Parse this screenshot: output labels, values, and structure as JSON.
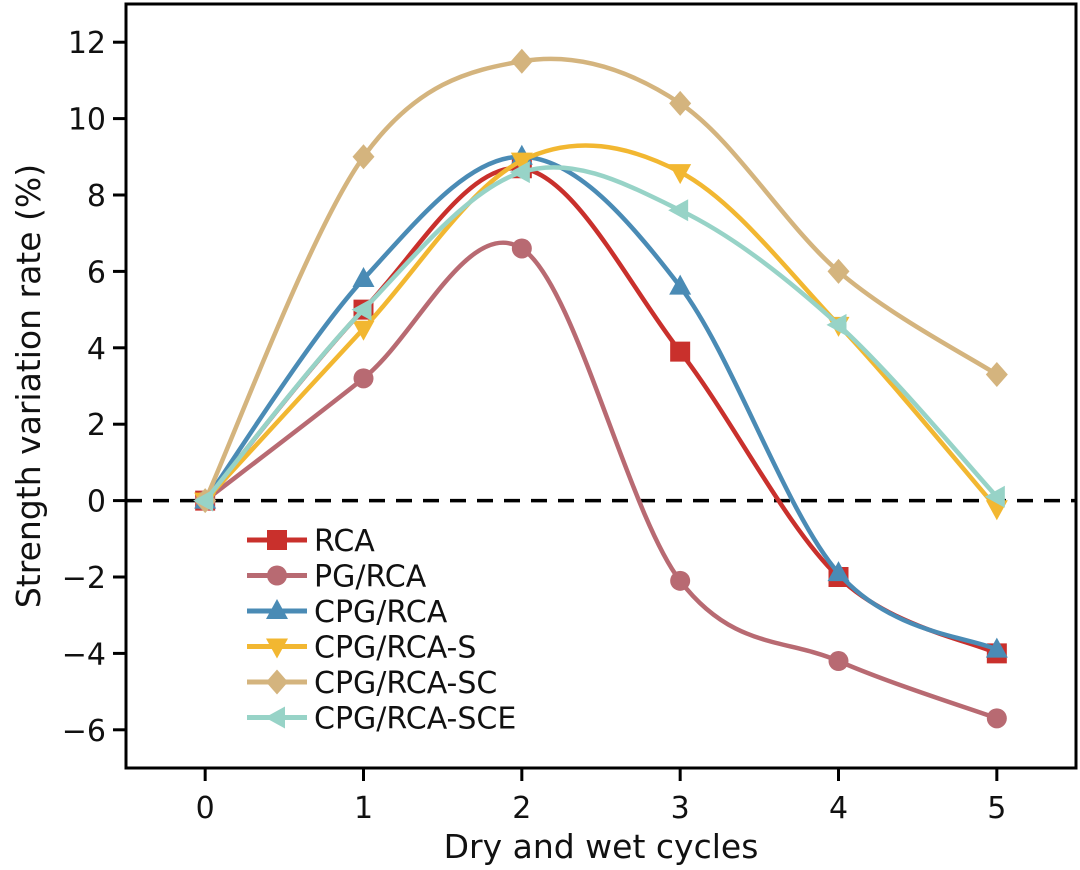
{
  "chart_data": {
    "type": "line",
    "title": "",
    "xlabel": "Dry and wet cycles",
    "ylabel": "Strength variation rate (%)",
    "x": [
      0,
      1,
      2,
      3,
      4,
      5
    ],
    "xlim": [
      -0.5,
      5.5
    ],
    "ylim": [
      -7,
      13
    ],
    "xticks": [
      0,
      1,
      2,
      3,
      4,
      5
    ],
    "yticks": [
      12,
      10,
      8,
      6,
      4,
      2,
      0,
      -2,
      -4,
      -6
    ],
    "ytick_labels": [
      "12",
      "10",
      "8",
      "6",
      "4",
      "2",
      "0",
      "−2",
      "−4",
      "−6"
    ],
    "reference_line": {
      "y": 0,
      "style": "dashed"
    },
    "grid": false,
    "legend_position": "lower-left",
    "series": [
      {
        "name": "RCA",
        "color": "#c9302c",
        "marker": "square",
        "values": [
          0,
          5.0,
          8.7,
          3.9,
          -2.0,
          -4.0
        ]
      },
      {
        "name": "PG/RCA",
        "color": "#b86a72",
        "marker": "circle",
        "values": [
          0,
          3.2,
          6.6,
          -2.1,
          -4.2,
          -5.7
        ]
      },
      {
        "name": "CPG/RCA",
        "color": "#4a8bb5",
        "marker": "triangle-up",
        "values": [
          0,
          5.8,
          9.0,
          5.6,
          -1.9,
          -3.9
        ]
      },
      {
        "name": "CPG/RCA-S",
        "color": "#f2b731",
        "marker": "triangle-down",
        "values": [
          0,
          4.5,
          8.9,
          8.6,
          4.6,
          -0.2
        ]
      },
      {
        "name": "CPG/RCA-SC",
        "color": "#d4b47e",
        "marker": "diamond",
        "values": [
          0,
          9.0,
          11.5,
          10.4,
          6.0,
          3.3
        ]
      },
      {
        "name": "CPG/RCA-SCE",
        "color": "#97d3c7",
        "marker": "triangle-left",
        "values": [
          0,
          5.0,
          8.6,
          7.6,
          4.6,
          0.1
        ]
      }
    ]
  }
}
